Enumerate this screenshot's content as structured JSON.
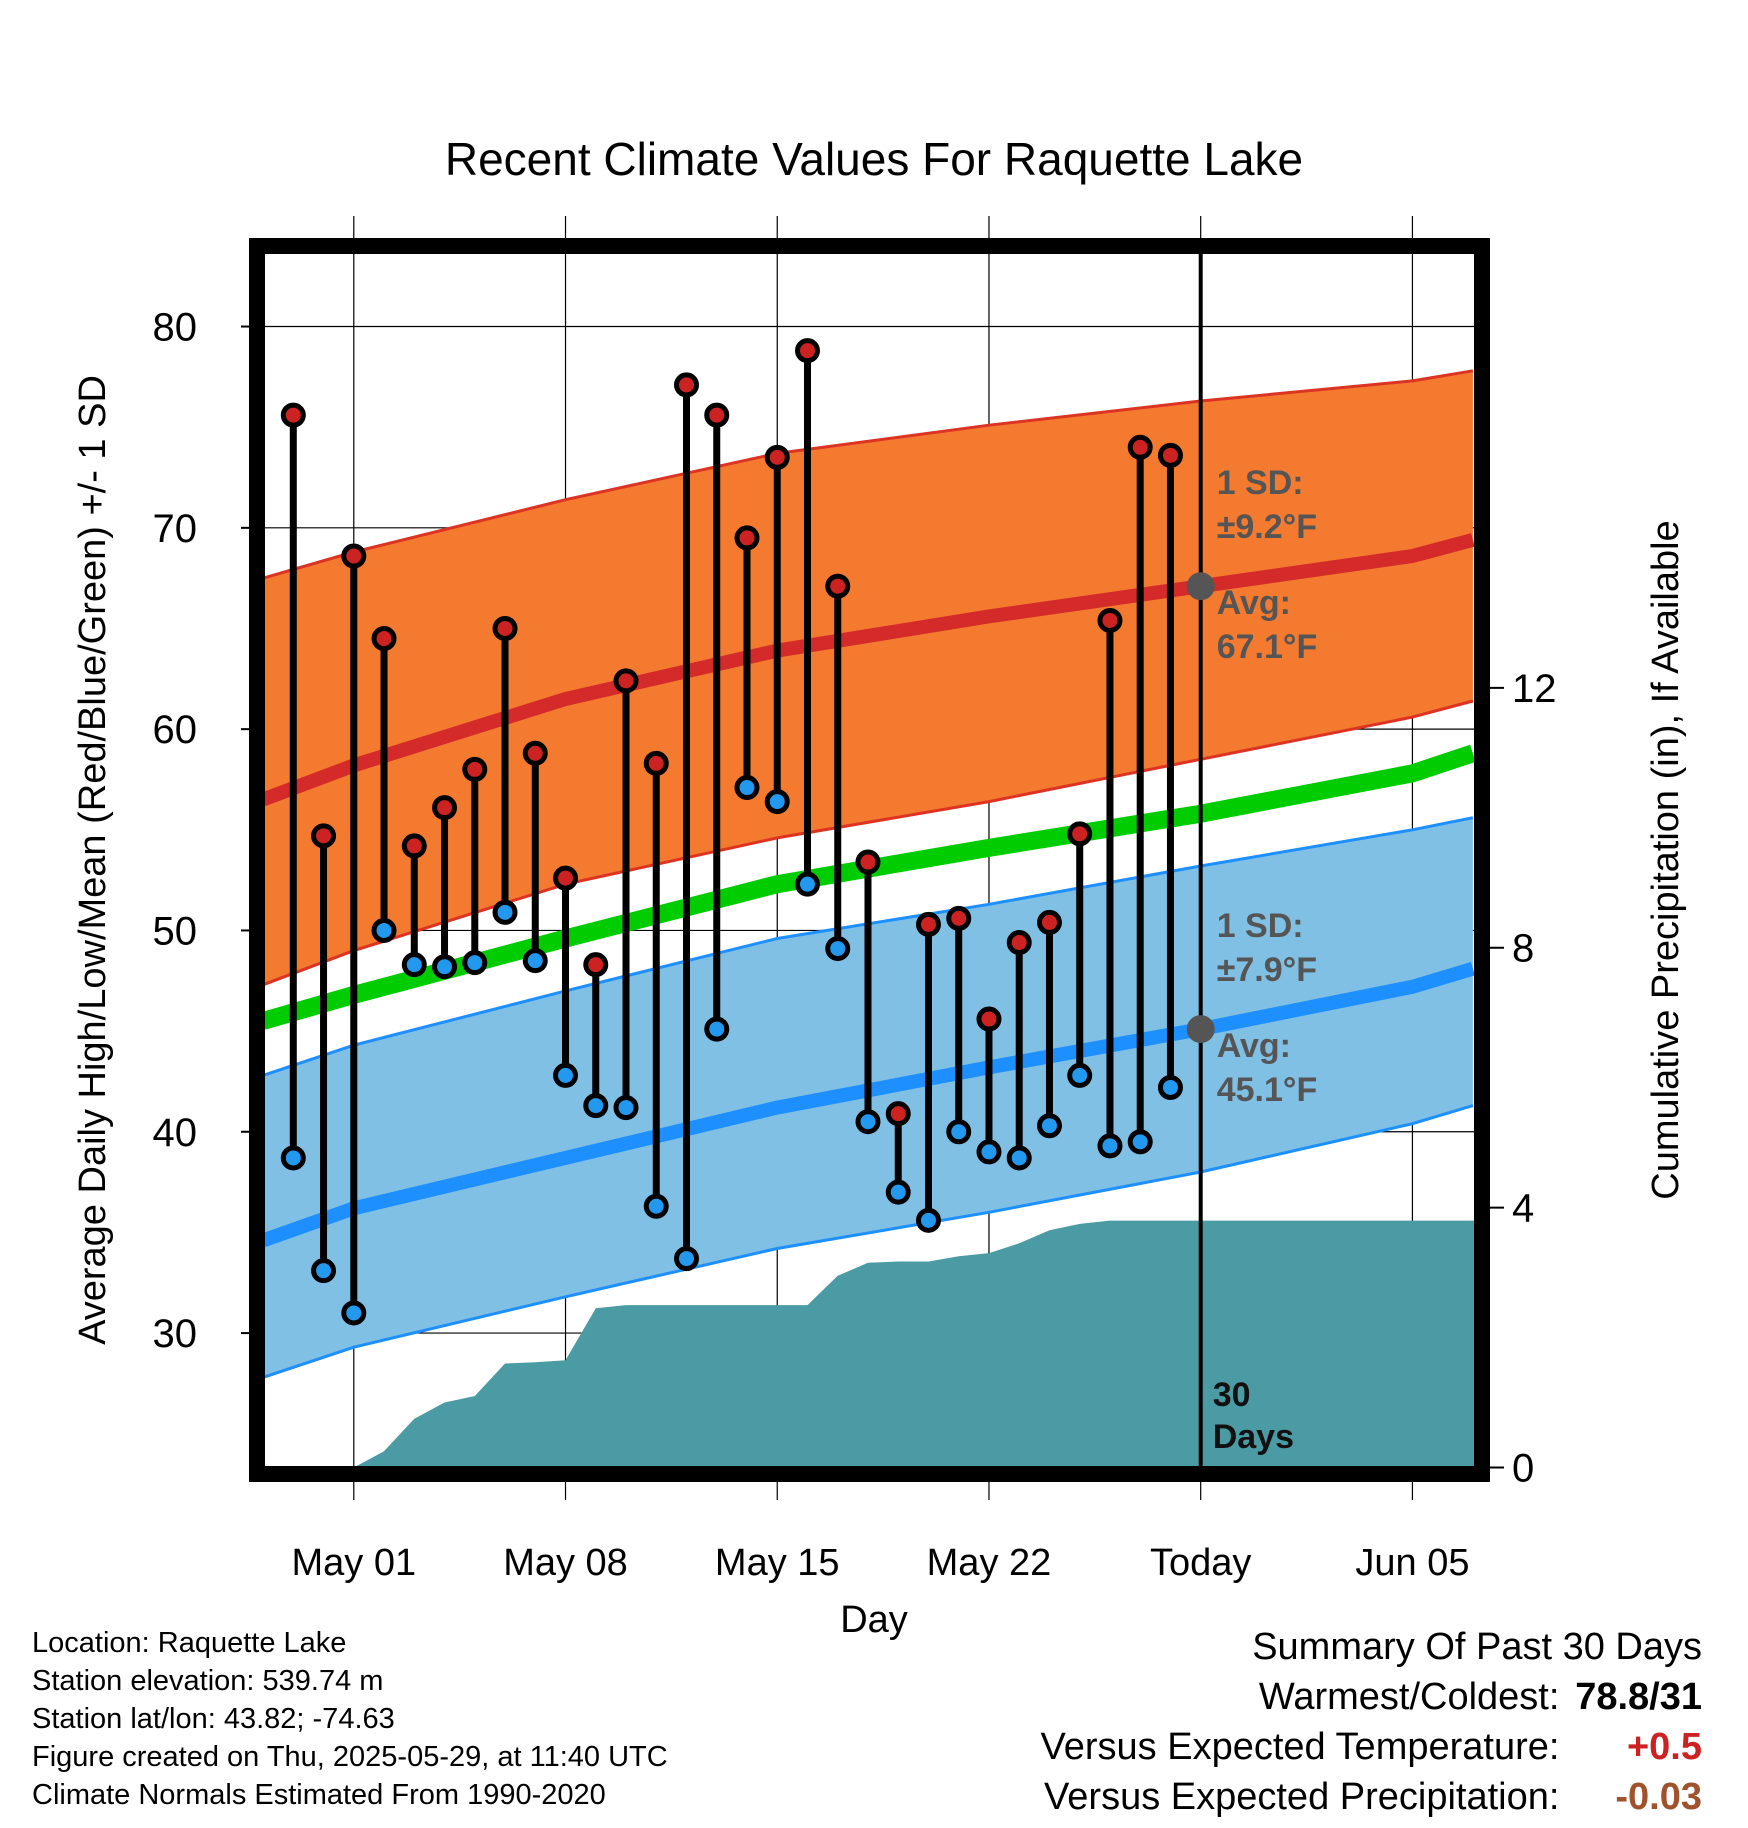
{
  "chart_data": {
    "type": "line",
    "title": "Recent Climate Values For Raquette Lake",
    "xlabel": "Day",
    "ylabel": "Average Daily High/Low/Mean (Red/Blue/Green) +/- 1 SD",
    "y2label": "Cumulative Precipitation (in), If Available",
    "ylim": [
      23,
      84
    ],
    "y2lim": [
      -0.1,
      18.8
    ],
    "yticks": [
      "30",
      "40",
      "50",
      "60",
      "70",
      "80"
    ],
    "y2ticks": [
      "0",
      "4",
      "8",
      "12"
    ],
    "xticks": [
      "May 01",
      "May 08",
      "May 15",
      "May 22",
      "Today",
      "Jun 05"
    ],
    "xlim": [
      -3.2,
      37.3
    ],
    "colors": {
      "high_band": "#f47a30",
      "high_line": "#d42a2a",
      "low_band": "#7fc0e4",
      "low_line": "#1e8fff",
      "mean_line": "#00cc00",
      "precip": "#4a9ba3",
      "high_dot": "#cc2222",
      "low_dot": "#2299ee",
      "label": "#555555",
      "warm": "#cc2222",
      "precip_anomaly": "#a0522d"
    },
    "normals": {
      "x": [
        -3,
        0,
        7,
        14,
        21,
        28,
        35,
        37
      ],
      "high_avg": [
        56.5,
        58.2,
        61.5,
        63.9,
        65.6,
        67.1,
        68.6,
        69.4
      ],
      "high_upper": [
        67.5,
        68.8,
        71.4,
        73.7,
        75.1,
        76.3,
        77.3,
        77.8
      ],
      "high_lower": [
        47.3,
        49.0,
        52.3,
        54.6,
        56.4,
        58.5,
        60.6,
        61.4
      ],
      "mean": [
        45.5,
        46.8,
        49.6,
        52.3,
        54.1,
        55.8,
        57.8,
        58.8
      ],
      "low_avg": [
        34.6,
        36.2,
        38.7,
        41.2,
        43.2,
        45.1,
        47.2,
        48.1
      ],
      "low_upper": [
        42.8,
        44.3,
        47.0,
        49.6,
        51.3,
        53.2,
        55.0,
        55.6
      ],
      "low_lower": [
        27.8,
        29.3,
        31.8,
        34.2,
        36.0,
        38.0,
        40.4,
        41.3
      ]
    },
    "observed": {
      "x": [
        -2,
        -1,
        0,
        1,
        2,
        3,
        4,
        5,
        6,
        7,
        8,
        9,
        10,
        11,
        12,
        13,
        14,
        15,
        16,
        17,
        18,
        19,
        20,
        21,
        22,
        23,
        24,
        25,
        26,
        27
      ],
      "highs": [
        75.6,
        54.7,
        68.6,
        64.5,
        54.2,
        56.1,
        58.0,
        65.0,
        58.8,
        52.6,
        48.3,
        62.4,
        58.3,
        77.1,
        75.6,
        69.5,
        73.5,
        78.8,
        67.1,
        53.4,
        40.9,
        50.3,
        50.6,
        45.6,
        49.4,
        50.4,
        54.8,
        65.4,
        74.0,
        73.6
      ],
      "lows": [
        38.7,
        33.1,
        31.0,
        50.0,
        48.3,
        48.2,
        48.4,
        50.9,
        48.5,
        42.8,
        41.3,
        41.2,
        36.3,
        33.7,
        45.1,
        57.1,
        56.4,
        52.3,
        49.1,
        40.5,
        37.0,
        35.6,
        40.0,
        39.0,
        38.7,
        40.3,
        42.8,
        39.3,
        39.5,
        42.2
      ]
    },
    "precip": {
      "x": [
        0,
        1,
        2,
        3,
        4,
        5,
        6,
        7,
        8,
        9,
        10,
        11,
        12,
        13,
        14,
        15,
        16,
        17,
        18,
        19,
        20,
        21,
        22,
        23,
        24,
        25,
        26,
        27,
        28,
        37.3
      ],
      "values": [
        0.0,
        0.25,
        0.75,
        1.0,
        1.1,
        1.6,
        1.62,
        1.65,
        2.45,
        2.5,
        2.5,
        2.5,
        2.5,
        2.5,
        2.5,
        2.5,
        2.95,
        3.15,
        3.17,
        3.17,
        3.25,
        3.3,
        3.45,
        3.65,
        3.75,
        3.8,
        3.8,
        3.8,
        3.8,
        3.8
      ]
    },
    "annotations": {
      "today_x": 28,
      "high_sd_label": "1 SD:",
      "high_sd_value": "±9.2°F",
      "high_avg_label": "Avg:",
      "high_avg_value": "67.1°F",
      "high_avg_y": 67.1,
      "low_sd_label": "1 SD:",
      "low_sd_value": "±7.9°F",
      "low_avg_label": "Avg:",
      "low_avg_value": "45.1°F",
      "low_avg_y": 45.1,
      "days_line1": "30",
      "days_line2": "Days"
    }
  },
  "station": {
    "location": "Location: Raquette Lake",
    "elevation": "Station elevation: 539.74 m",
    "latlon": "Station lat/lon: 43.82; -74.63",
    "created": "Figure created on Thu, 2025-05-29, at 11:40 UTC",
    "normals": "Climate Normals Estimated From 1990-2020"
  },
  "summary": {
    "heading": "Summary Of Past 30 Days",
    "warmest_label": "Warmest/Coldest:",
    "warmest_value": "78.8/31",
    "temp_label": "Versus Expected Temperature:",
    "temp_value": "+0.5",
    "precip_label": "Versus Expected Precipitation:",
    "precip_value": "-0.03"
  }
}
